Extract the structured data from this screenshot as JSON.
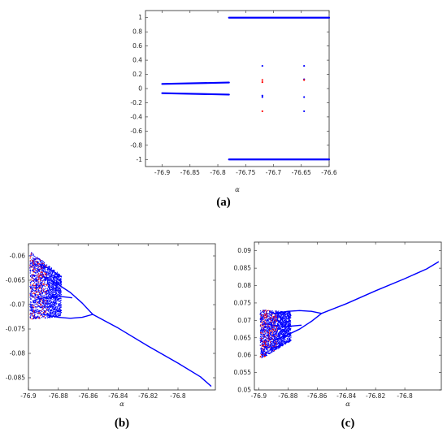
{
  "colors": {
    "series_primary": "#0000ff",
    "series_secondary": "#ff0000",
    "axis": "#262626"
  },
  "chart_data": [
    {
      "id": "a",
      "type": "scatter",
      "caption": "(a)",
      "xlabel": "α",
      "xlim": [
        -76.93,
        -76.6
      ],
      "ylim": [
        -1.1,
        1.1
      ],
      "xticks": [
        -76.9,
        -76.85,
        -76.8,
        -76.75,
        -76.7,
        -76.65,
        -76.6
      ],
      "xtick_labels": [
        "-76.9",
        "-76.85",
        "-76.8",
        "-76.75",
        "-76.7",
        "-76.65",
        "-76.6"
      ],
      "yticks": [
        -1,
        -0.8,
        -0.6,
        -0.4,
        -0.2,
        0,
        0.2,
        0.4,
        0.6,
        0.8,
        1
      ],
      "ytick_labels": [
        "-1",
        "-0.8",
        "-0.6",
        "-0.4",
        "-0.2",
        "0",
        "0.2",
        "0.4",
        "0.6",
        "0.8",
        "1"
      ],
      "series": [
        {
          "color": "blue",
          "kind": "line",
          "x": [
            -76.9,
            -76.78
          ],
          "y": [
            0.065,
            0.085
          ]
        },
        {
          "color": "blue",
          "kind": "line",
          "x": [
            -76.9,
            -76.78
          ],
          "y": [
            -0.065,
            -0.085
          ]
        },
        {
          "color": "blue",
          "kind": "line",
          "x": [
            -76.78,
            -76.6
          ],
          "y": [
            1.0,
            1.0
          ]
        },
        {
          "color": "blue",
          "kind": "line",
          "x": [
            -76.78,
            -76.6
          ],
          "y": [
            -1.0,
            -1.0
          ]
        },
        {
          "color": "blue",
          "kind": "points",
          "x": [
            -76.72,
            -76.72,
            -76.72,
            -76.645,
            -76.645,
            -76.645,
            -76.645
          ],
          "y": [
            0.32,
            -0.1,
            -0.12,
            0.32,
            0.13,
            -0.12,
            -0.32
          ]
        },
        {
          "color": "red",
          "kind": "points",
          "x": [
            -76.72,
            -76.72,
            -76.72,
            -76.645
          ],
          "y": [
            0.12,
            0.09,
            -0.32,
            0.12
          ]
        }
      ]
    },
    {
      "id": "b",
      "type": "scatter",
      "caption": "(b)",
      "xlabel": "α",
      "xlim": [
        -76.9,
        -76.775
      ],
      "ylim": [
        -0.0875,
        -0.0575
      ],
      "xticks": [
        -76.9,
        -76.88,
        -76.86,
        -76.84,
        -76.82,
        -76.8
      ],
      "xtick_labels": [
        "-76.9",
        "-76.88",
        "-76.86",
        "-76.84",
        "-76.82",
        "-76.8"
      ],
      "yticks": [
        -0.06,
        -0.065,
        -0.07,
        -0.075,
        -0.08,
        -0.085
      ],
      "ytick_labels": [
        "-0.06",
        "-0.065",
        "-0.07",
        "-0.075",
        "-0.08",
        "-0.085"
      ],
      "chaos_region": {
        "x": [
          -76.899,
          -76.878
        ],
        "y_top": [
          -0.059,
          -0.064
        ],
        "y_bottom": [
          -0.073,
          -0.0725
        ]
      },
      "series": [
        {
          "color": "blue",
          "kind": "line",
          "x": [
            -76.857,
            -76.84,
            -76.82,
            -76.8,
            -76.785,
            -76.778
          ],
          "y": [
            -0.072,
            -0.0748,
            -0.0785,
            -0.082,
            -0.0848,
            -0.0867
          ]
        },
        {
          "color": "blue",
          "kind": "line",
          "x": [
            -76.89,
            -76.882,
            -76.872,
            -76.864,
            -76.857
          ],
          "y": [
            -0.0642,
            -0.0655,
            -0.0675,
            -0.0697,
            -0.072
          ]
        },
        {
          "color": "blue",
          "kind": "line",
          "x": [
            -76.89,
            -76.88,
            -76.872,
            -76.864,
            -76.857
          ],
          "y": [
            -0.072,
            -0.0726,
            -0.0728,
            -0.0726,
            -0.072
          ]
        },
        {
          "color": "blue",
          "kind": "line",
          "x": [
            -76.893,
            -76.886,
            -76.879,
            -76.871
          ],
          "y": [
            -0.0688,
            -0.0684,
            -0.0683,
            -0.0686
          ]
        },
        {
          "color": "blue",
          "kind": "line",
          "x": [
            -76.892,
            -76.885,
            -76.878
          ],
          "y": [
            -0.0617,
            -0.0628,
            -0.0643
          ]
        }
      ]
    },
    {
      "id": "c",
      "type": "scatter",
      "caption": "(c)",
      "xlabel": "α",
      "xlim": [
        -76.903,
        -76.775
      ],
      "ylim": [
        0.05,
        0.0925
      ],
      "xticks": [
        -76.9,
        -76.88,
        -76.86,
        -76.84,
        -76.82,
        -76.8
      ],
      "xtick_labels": [
        "-76.9",
        "-76.88",
        "-76.86",
        "-76.84",
        "-76.82",
        "-76.8"
      ],
      "yticks": [
        0.05,
        0.055,
        0.06,
        0.065,
        0.07,
        0.075,
        0.08,
        0.085,
        0.09
      ],
      "ytick_labels": [
        "0.05",
        "0.055",
        "0.06",
        "0.065",
        "0.07",
        "0.075",
        "0.08",
        "0.085",
        "0.09"
      ],
      "chaos_region": {
        "x": [
          -76.899,
          -76.878
        ],
        "y_top": [
          0.073,
          0.0725
        ],
        "y_bottom": [
          0.0588,
          0.064
        ]
      },
      "series": [
        {
          "color": "blue",
          "kind": "line",
          "x": [
            -76.857,
            -76.84,
            -76.82,
            -76.8,
            -76.785,
            -76.777
          ],
          "y": [
            0.072,
            0.0748,
            0.0785,
            0.082,
            0.0848,
            0.0868
          ]
        },
        {
          "color": "blue",
          "kind": "line",
          "x": [
            -76.89,
            -76.882,
            -76.872,
            -76.864,
            -76.857
          ],
          "y": [
            0.0642,
            0.0655,
            0.0675,
            0.0697,
            0.072
          ]
        },
        {
          "color": "blue",
          "kind": "line",
          "x": [
            -76.89,
            -76.88,
            -76.872,
            -76.864,
            -76.857
          ],
          "y": [
            0.072,
            0.0726,
            0.0728,
            0.0726,
            0.072
          ]
        },
        {
          "color": "blue",
          "kind": "line",
          "x": [
            -76.893,
            -76.886,
            -76.879,
            -76.871
          ],
          "y": [
            0.0688,
            0.0684,
            0.0683,
            0.0686
          ]
        },
        {
          "color": "blue",
          "kind": "line",
          "x": [
            -76.892,
            -76.885,
            -76.878
          ],
          "y": [
            0.0617,
            0.0628,
            0.0643
          ]
        }
      ]
    }
  ]
}
